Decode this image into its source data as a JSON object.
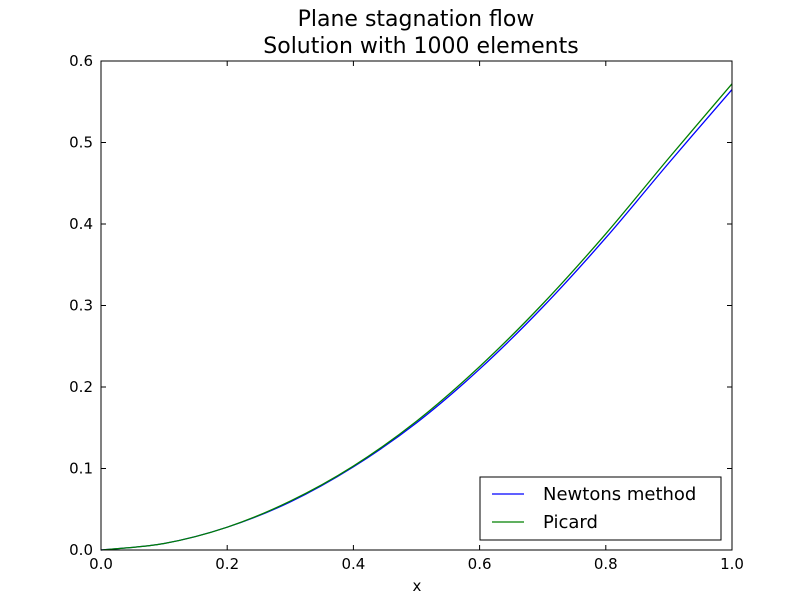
{
  "chart_data": {
    "type": "line",
    "title": "Plane stagnation flow",
    "subtitle": "Solution with 1000 elements",
    "xlabel": "x",
    "ylabel": "",
    "xlim": [
      0.0,
      1.0
    ],
    "ylim": [
      0.0,
      0.6
    ],
    "x_ticks": [
      "0.0",
      "0.2",
      "0.4",
      "0.6",
      "0.8",
      "1.0"
    ],
    "y_ticks": [
      "0.0",
      "0.1",
      "0.2",
      "0.3",
      "0.4",
      "0.5",
      "0.6"
    ],
    "grid": false,
    "legend_position": "lower-right",
    "x": [
      0.0,
      0.1,
      0.2,
      0.3,
      0.4,
      0.5,
      0.6,
      0.7,
      0.8,
      0.9,
      1.0
    ],
    "series": [
      {
        "name": "Newtons method",
        "color": "#0000ff",
        "values": [
          0.0,
          0.008,
          0.028,
          0.059,
          0.102,
          0.156,
          0.222,
          0.298,
          0.383,
          0.475,
          0.565
        ]
      },
      {
        "name": "Picard",
        "color": "#008000",
        "values": [
          0.0,
          0.008,
          0.028,
          0.06,
          0.103,
          0.158,
          0.225,
          0.302,
          0.388,
          0.481,
          0.572
        ]
      }
    ]
  }
}
